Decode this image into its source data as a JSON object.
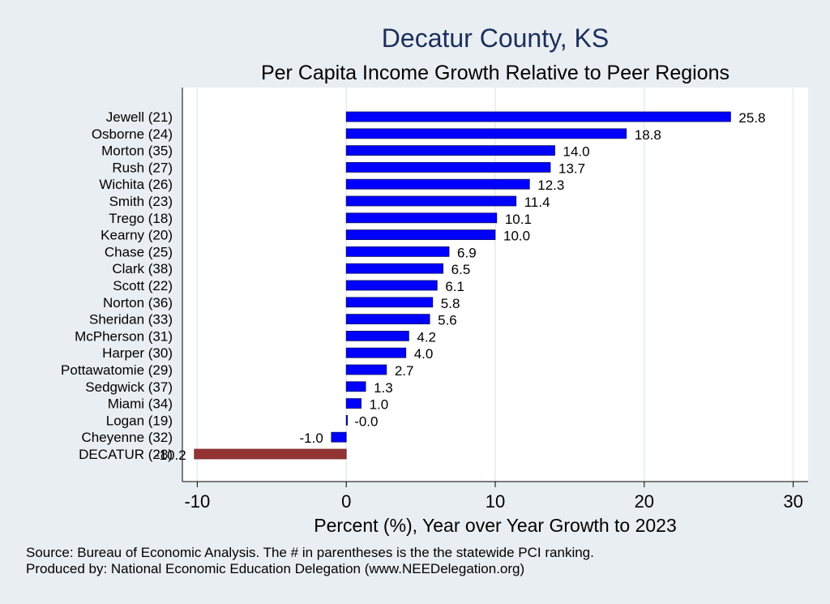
{
  "title": "Decatur County, KS",
  "subtitle": "Per Capita Income Growth Relative to Peer Regions",
  "footer": {
    "source": "Source: Bureau of Economic Analysis. The # in parentheses is the the statewide PCI ranking.",
    "produced": "Produced by: National Economic Education Delegation (www.NEEDelegation.org)"
  },
  "colors": {
    "bar": "#0000ff",
    "highlight": "#933333",
    "background": "#e9eef2",
    "plot": "#ffffff"
  },
  "chart_data": {
    "type": "bar",
    "orientation": "horizontal",
    "title": "Decatur County, KS",
    "subtitle": "Per Capita Income Growth Relative to Peer Regions",
    "xlabel": "Percent (%), Year over Year Growth to 2023",
    "ylabel": "",
    "xlim": [
      -11,
      31
    ],
    "xticks": [
      -10,
      0,
      10,
      20,
      30
    ],
    "grid": true,
    "categories": [
      "Jewell (21)",
      "Osborne (24)",
      "Morton (35)",
      "Rush (27)",
      "Wichita (26)",
      "Smith (23)",
      "Trego (18)",
      "Kearny (20)",
      "Chase (25)",
      "Clark (38)",
      "Scott (22)",
      "Norton (36)",
      "Sheridan (33)",
      "McPherson (31)",
      "Harper (30)",
      "Pottawatomie (29)",
      "Sedgwick (37)",
      "Miami (34)",
      "Logan (19)",
      "Cheyenne (32)",
      "DECATUR (28)"
    ],
    "values": [
      25.8,
      18.8,
      14.0,
      13.7,
      12.3,
      11.4,
      10.1,
      10.0,
      6.9,
      6.5,
      6.1,
      5.8,
      5.6,
      4.2,
      4.0,
      2.7,
      1.3,
      1.0,
      -0.0,
      -1.0,
      -10.2
    ],
    "labels": [
      "25.8",
      "18.8",
      "14.0",
      "13.7",
      "12.3",
      "11.4",
      "10.1",
      "10.0",
      "6.9",
      "6.5",
      "6.1",
      "5.8",
      "5.6",
      "4.2",
      "4.0",
      "2.7",
      "1.3",
      "1.0",
      "-0.0",
      "-1.0",
      "-10.2"
    ],
    "highlight": "DECATUR (28)"
  }
}
